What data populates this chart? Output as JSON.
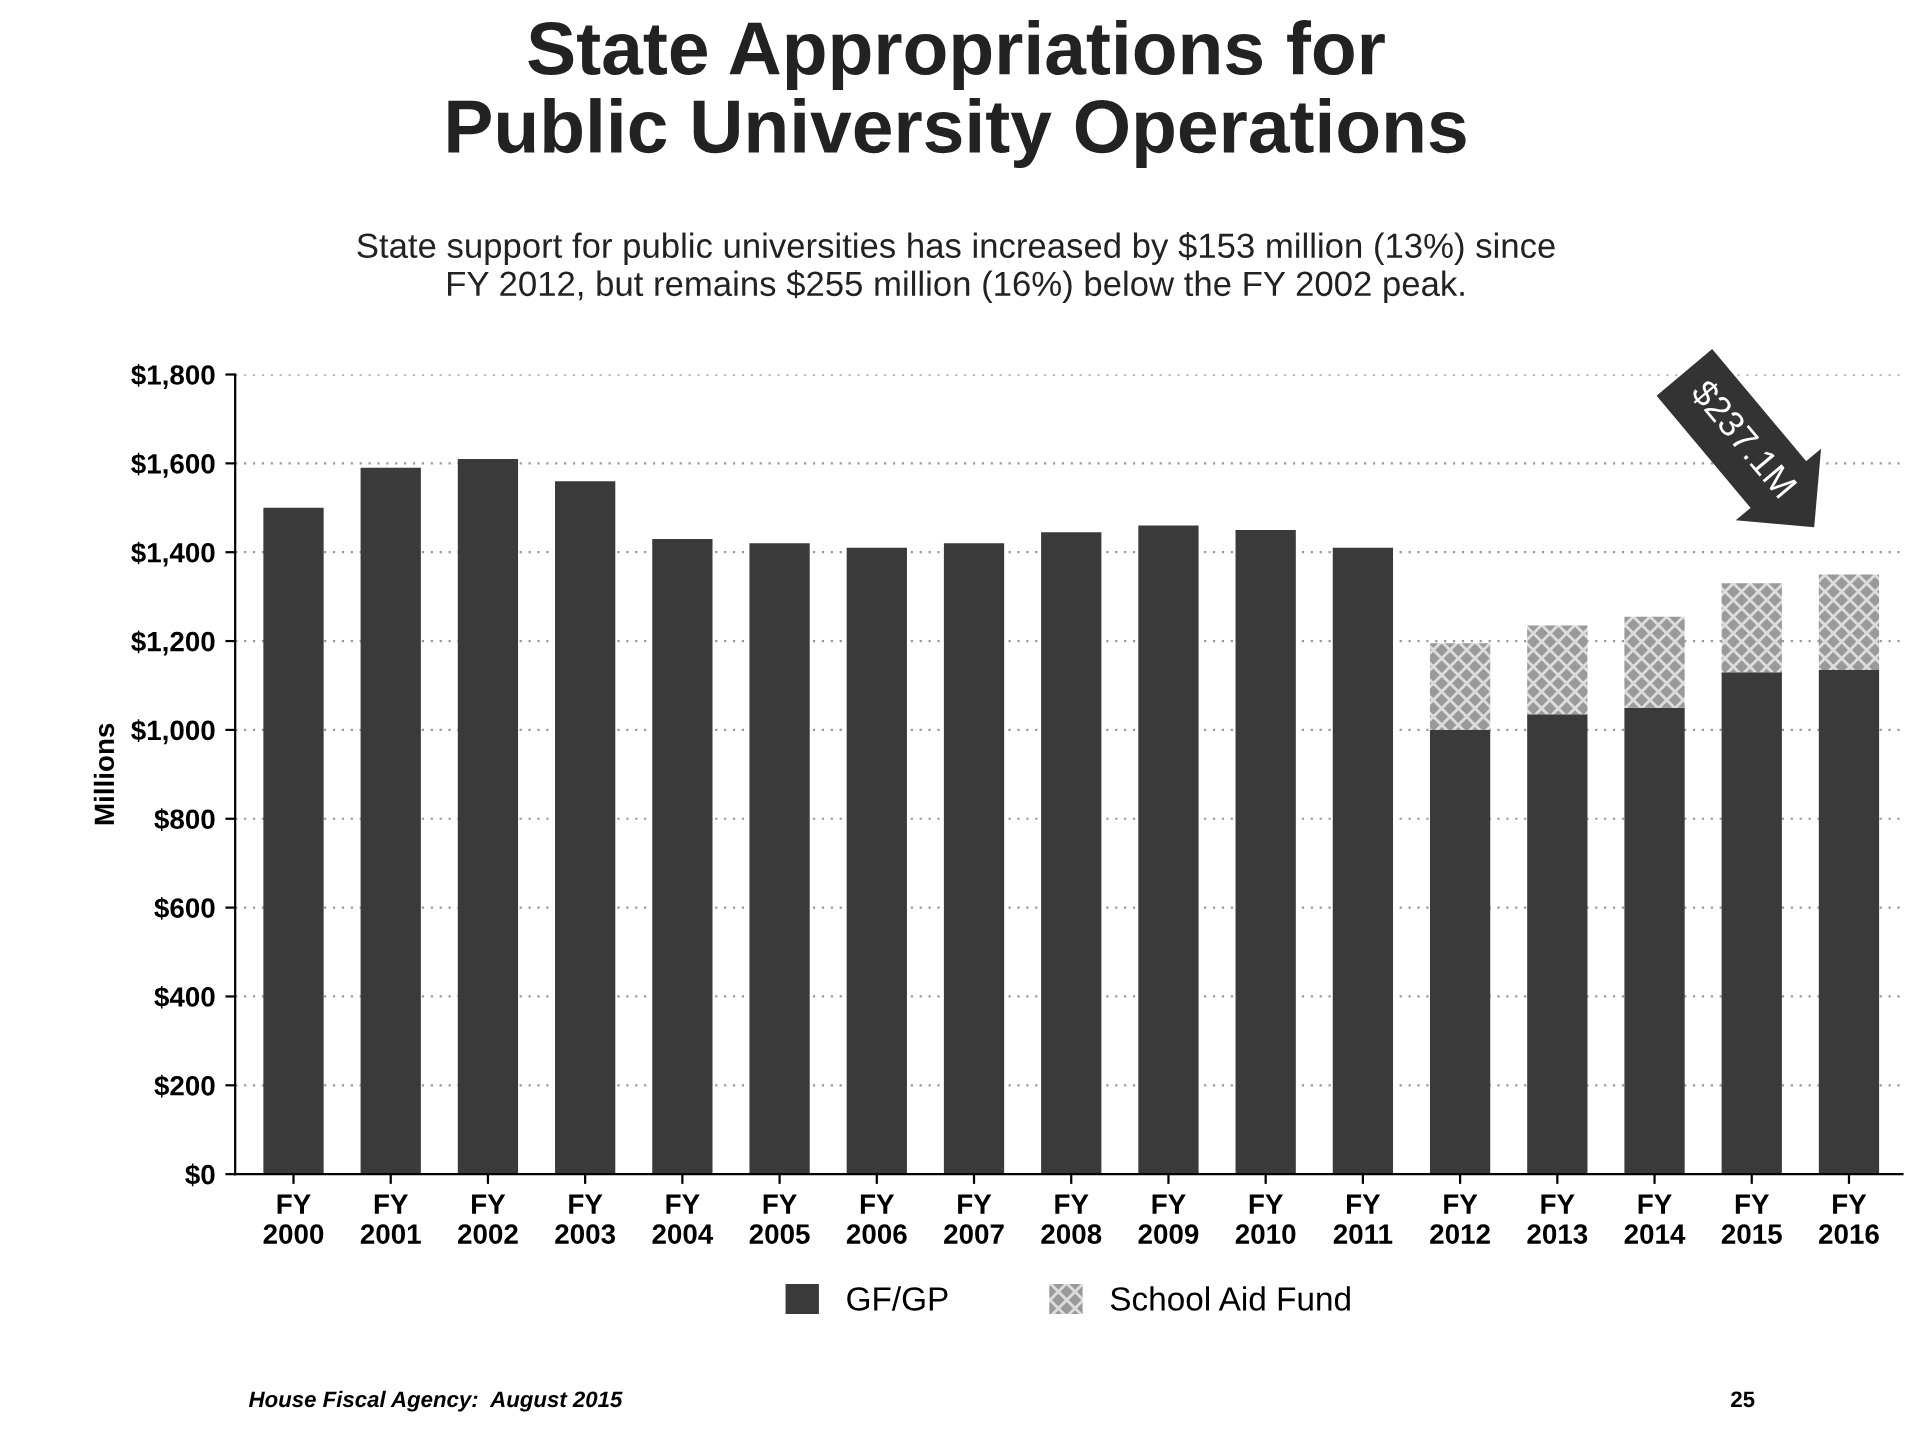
{
  "chart_data": {
    "type": "bar",
    "title": "State Appropriations for\nPublic University Operations",
    "subtitle": "State support for public universities has increased by $153 million (13%) since\nFY 2012, but remains $255 million (16%) below the FY 2002 peak.",
    "ylabel": "Millions",
    "categories": [
      "FY\n2000",
      "FY\n2001",
      "FY\n2002",
      "FY\n2003",
      "FY\n2004",
      "FY\n2005",
      "FY\n2006",
      "FY\n2007",
      "FY\n2008",
      "FY\n2009",
      "FY\n2010",
      "FY\n2011",
      "FY\n2012",
      "FY\n2013",
      "FY\n2014",
      "FY\n2015",
      "FY\n2016"
    ],
    "stacked": true,
    "series": [
      {
        "name": "GF/GP",
        "color": "#3a3a3a",
        "values": [
          1500,
          1590,
          1610,
          1560,
          1430,
          1420,
          1410,
          1420,
          1445,
          1460,
          1450,
          1410,
          1000,
          1035,
          1050,
          1130,
          1135
        ]
      },
      {
        "name": "School Aid Fund",
        "color": "#9a9a9a",
        "values": [
          null,
          null,
          null,
          null,
          null,
          null,
          null,
          null,
          null,
          null,
          null,
          null,
          195,
          200,
          205,
          200,
          215
        ]
      }
    ],
    "ylim": [
      0,
      1800
    ],
    "yticks": [
      {
        "value": 0,
        "label": "$0"
      },
      {
        "value": 200,
        "label": "$200"
      },
      {
        "value": 400,
        "label": "$400"
      },
      {
        "value": 600,
        "label": "$600"
      },
      {
        "value": 800,
        "label": "$800"
      },
      {
        "value": 1000,
        "label": "$1,000"
      },
      {
        "value": 1200,
        "label": "$1,200"
      },
      {
        "value": 1400,
        "label": "$1,400"
      },
      {
        "value": 1600,
        "label": "$1,600"
      },
      {
        "value": 1800,
        "label": "$1,800"
      }
    ],
    "grid": "y",
    "legend": "bottom",
    "annotations": [
      {
        "text": "$237.1M",
        "x": "FY\n2016",
        "y": 1350
      },
      "House Fiscal Agency:  August 2015",
      "25"
    ]
  }
}
